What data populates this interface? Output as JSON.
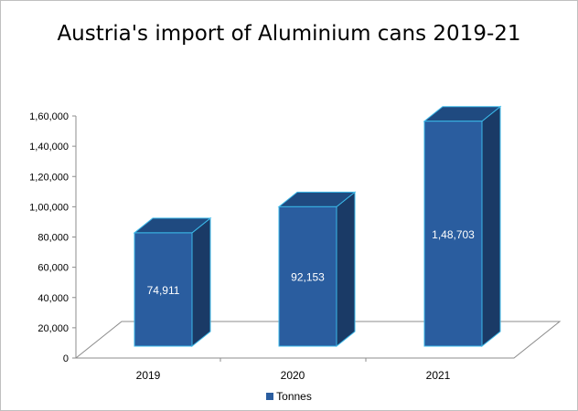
{
  "chart_data": {
    "type": "bar",
    "title": "Austria's import of Aluminium cans 2019-21",
    "categories": [
      "2019",
      "2020",
      "2021"
    ],
    "series": [
      {
        "name": "Tonnes",
        "values": [
          74911,
          92153,
          148703
        ]
      }
    ],
    "data_labels": [
      "74,911",
      "92,153",
      "1,48,703"
    ],
    "y_ticks": [
      "0",
      "20,000",
      "40,000",
      "60,000",
      "80,000",
      "1,00,000",
      "1,20,000",
      "1,40,000",
      "1,60,000"
    ],
    "ylim": [
      0,
      160000
    ],
    "legend_position": "bottom",
    "grid": false,
    "style": "3d-column",
    "colors": {
      "bar_front": "#2a5d9f",
      "bar_side": "#1a3a66",
      "bar_top": "#1f4a80",
      "bar_edge": "#3bb8e8",
      "label": "#ffffff"
    }
  }
}
